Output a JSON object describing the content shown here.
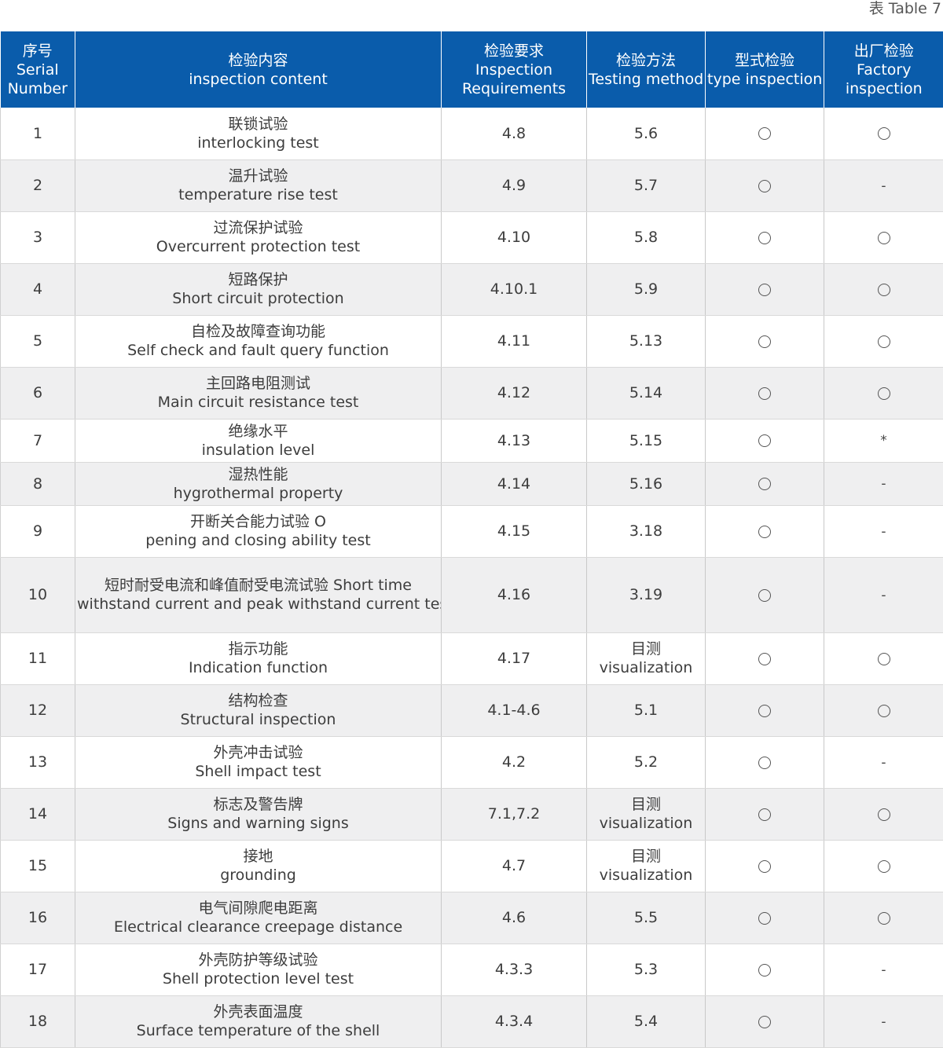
{
  "table_label": "表 Table 7",
  "headers": [
    {
      "cn": "序号",
      "en": [
        "Serial",
        "Number"
      ]
    },
    {
      "cn": "检验内容",
      "en": [
        "inspection content"
      ]
    },
    {
      "cn": "检验要求",
      "en": [
        "Inspection",
        "Requirements"
      ]
    },
    {
      "cn": "检验方法",
      "en": [
        "Testing method"
      ]
    },
    {
      "cn": "型式检验",
      "en": [
        "type inspection"
      ]
    },
    {
      "cn": "出厂检验",
      "en": [
        "Factory",
        "inspection"
      ]
    }
  ],
  "rows": [
    {
      "no": "1",
      "content": [
        "联锁试验",
        "interlocking test"
      ],
      "req": "4.8",
      "method": [
        "5.6"
      ],
      "type": "circle",
      "factory": "circle"
    },
    {
      "no": "2",
      "content": [
        "温升试验",
        "temperature rise test"
      ],
      "req": "4.9",
      "method": [
        "5.7"
      ],
      "type": "circle",
      "factory": "-"
    },
    {
      "no": "3",
      "content": [
        "过流保护试验",
        "Overcurrent protection test"
      ],
      "req": "4.10",
      "method": [
        "5.8"
      ],
      "type": "circle",
      "factory": "circle"
    },
    {
      "no": "4",
      "content": [
        "短路保护",
        "Short circuit protection"
      ],
      "req": "4.10.1",
      "method": [
        "5.9"
      ],
      "type": "circle",
      "factory": "circle"
    },
    {
      "no": "5",
      "content": [
        "自检及故障查询功能",
        "Self check and fault query function"
      ],
      "req": "4.11",
      "method": [
        "5.13"
      ],
      "type": "circle",
      "factory": "circle"
    },
    {
      "no": "6",
      "content": [
        "主回路电阻测试",
        "Main circuit resistance test"
      ],
      "req": "4.12",
      "method": [
        "5.14"
      ],
      "type": "circle",
      "factory": "circle"
    },
    {
      "no": "7",
      "content": [
        "绝缘水平",
        "insulation level"
      ],
      "req": "4.13",
      "method": [
        "5.15"
      ],
      "type": "circle",
      "factory": "*"
    },
    {
      "no": "8",
      "content": [
        "湿热性能",
        "hygrothermal property"
      ],
      "req": "4.14",
      "method": [
        "5.16"
      ],
      "type": "circle",
      "factory": "-"
    },
    {
      "no": "9",
      "content": [
        "开断关合能力试验 O",
        "pening and closing ability test"
      ],
      "req": "4.15",
      "method": [
        "3.18"
      ],
      "type": "circle",
      "factory": "-"
    },
    {
      "no": "10",
      "content": [
        "短时耐受电流和峰值耐受电流试验 Short time",
        "withstand current and peak withstand current test"
      ],
      "req": "4.16",
      "method": [
        "3.19"
      ],
      "type": "circle",
      "factory": "-"
    },
    {
      "no": "11",
      "content": [
        "指示功能",
        "Indication function"
      ],
      "req": "4.17",
      "method": [
        "目测",
        "visualization"
      ],
      "type": "circle",
      "factory": "circle"
    },
    {
      "no": "12",
      "content": [
        "结构检查",
        "Structural inspection"
      ],
      "req": "4.1-4.6",
      "method": [
        "5.1"
      ],
      "type": "circle",
      "factory": "circle"
    },
    {
      "no": "13",
      "content": [
        "外壳冲击试验",
        "Shell impact test"
      ],
      "req": "4.2",
      "method": [
        "5.2"
      ],
      "type": "circle",
      "factory": "-"
    },
    {
      "no": "14",
      "content": [
        "标志及警告牌",
        "Signs and warning signs"
      ],
      "req": "7.1,7.2",
      "method": [
        "目测",
        "visualization"
      ],
      "type": "circle",
      "factory": "circle"
    },
    {
      "no": "15",
      "content": [
        "接地",
        "grounding"
      ],
      "req": "4.7",
      "method": [
        "目测",
        "visualization"
      ],
      "type": "circle",
      "factory": "circle"
    },
    {
      "no": "16",
      "content": [
        "电气间隙爬电距离",
        "Electrical clearance creepage distance"
      ],
      "req": "4.6",
      "method": [
        "5.5"
      ],
      "type": "circle",
      "factory": "circle"
    },
    {
      "no": "17",
      "content": [
        "外壳防护等级试验",
        "Shell protection level test"
      ],
      "req": "4.3.3",
      "method": [
        "5.3"
      ],
      "type": "circle",
      "factory": "-"
    },
    {
      "no": "18",
      "content": [
        "外壳表面温度",
        "Surface temperature of the shell"
      ],
      "req": "4.3.4",
      "method": [
        "5.4"
      ],
      "type": "circle",
      "factory": "-"
    }
  ]
}
